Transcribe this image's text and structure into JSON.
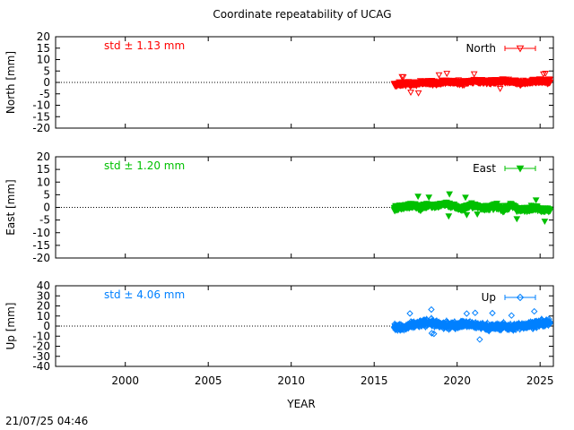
{
  "chart_data": {
    "type": "scatter",
    "title": "Coordinate repeatability of UCAG",
    "xlabel": "YEAR",
    "timestamp": "21/07/25 04:46",
    "xlim": [
      1995.8,
      2025.8
    ],
    "xticks": [
      "2000",
      "2005",
      "2010",
      "2015",
      "2020",
      "2025"
    ],
    "xtick_values": [
      2000,
      2005,
      2010,
      2015,
      2020,
      2025
    ],
    "grid": false,
    "legend_position": "top-right",
    "data_start": 2016.2,
    "data_end": 2025.6,
    "panels": [
      {
        "name": "North",
        "ylabel": "North [mm]",
        "std_label": "std ± 1.13 mm",
        "color": "#ff0000",
        "marker": "triangle-down-open",
        "ylim": [
          -20,
          20
        ],
        "yticks": [
          "20",
          "15",
          "10",
          "5",
          "0",
          "-5",
          "-10",
          "-15",
          "-20"
        ],
        "ytick_values": [
          20,
          15,
          10,
          5,
          0,
          -5,
          -10,
          -15,
          -20
        ],
        "std": 1.13,
        "series": {
          "x": [
            2016.3,
            2016.8,
            2017.3,
            2017.8,
            2018.3,
            2018.8,
            2019.3,
            2019.8,
            2020.3,
            2020.8,
            2021.3,
            2021.8,
            2022.3,
            2022.8,
            2023.3,
            2023.8,
            2024.3,
            2024.8,
            2025.3
          ],
          "y": [
            -1.0,
            -0.5,
            -0.8,
            -0.3,
            0.2,
            -0.6,
            0.5,
            0.1,
            -0.2,
            0.4,
            0.6,
            0.1,
            0.3,
            0.5,
            0.2,
            -0.4,
            0.3,
            0.6,
            0.4
          ]
        }
      },
      {
        "name": "East",
        "ylabel": "East [mm]",
        "std_label": "std ± 1.20 mm",
        "color": "#00c000",
        "marker": "triangle-down-filled",
        "ylim": [
          -20,
          20
        ],
        "yticks": [
          "20",
          "15",
          "10",
          "5",
          "0",
          "-5",
          "-10",
          "-15",
          "-20"
        ],
        "ytick_values": [
          20,
          15,
          10,
          5,
          0,
          -5,
          -10,
          -15,
          -20
        ],
        "std": 1.2,
        "series": {
          "x": [
            2016.3,
            2016.8,
            2017.3,
            2017.8,
            2018.3,
            2018.8,
            2019.3,
            2019.8,
            2020.3,
            2020.8,
            2021.3,
            2021.8,
            2022.3,
            2022.8,
            2023.3,
            2023.8,
            2024.3,
            2024.8,
            2025.3
          ],
          "y": [
            -0.5,
            0.3,
            0.8,
            -0.2,
            1.0,
            0.5,
            1.5,
            0.4,
            -0.6,
            0.8,
            0.2,
            -0.3,
            0.5,
            -0.8,
            0.6,
            -1.2,
            -0.4,
            -0.2,
            -1.0
          ]
        }
      },
      {
        "name": "Up",
        "ylabel": "Up [mm]",
        "std_label": "std ± 4.06 mm",
        "color": "#0080ff",
        "marker": "diamond-open",
        "ylim": [
          -40,
          40
        ],
        "yticks": [
          "40",
          "30",
          "20",
          "10",
          "0",
          "-10",
          "-20",
          "-30",
          "-40"
        ],
        "ytick_values": [
          40,
          30,
          20,
          10,
          0,
          -10,
          -20,
          -30,
          -40
        ],
        "std": 4.06,
        "series": {
          "x": [
            2016.3,
            2016.8,
            2017.3,
            2017.8,
            2018.3,
            2018.8,
            2019.3,
            2019.8,
            2020.3,
            2020.8,
            2021.3,
            2021.8,
            2022.3,
            2022.8,
            2023.3,
            2023.8,
            2024.3,
            2024.8,
            2025.3
          ],
          "y": [
            -1.0,
            -2.0,
            1.0,
            2.5,
            4.0,
            1.5,
            0.5,
            1.0,
            2.0,
            1.5,
            0.5,
            -0.5,
            -1.0,
            0.0,
            -1.5,
            0.5,
            1.0,
            2.0,
            3.0
          ]
        }
      }
    ]
  }
}
